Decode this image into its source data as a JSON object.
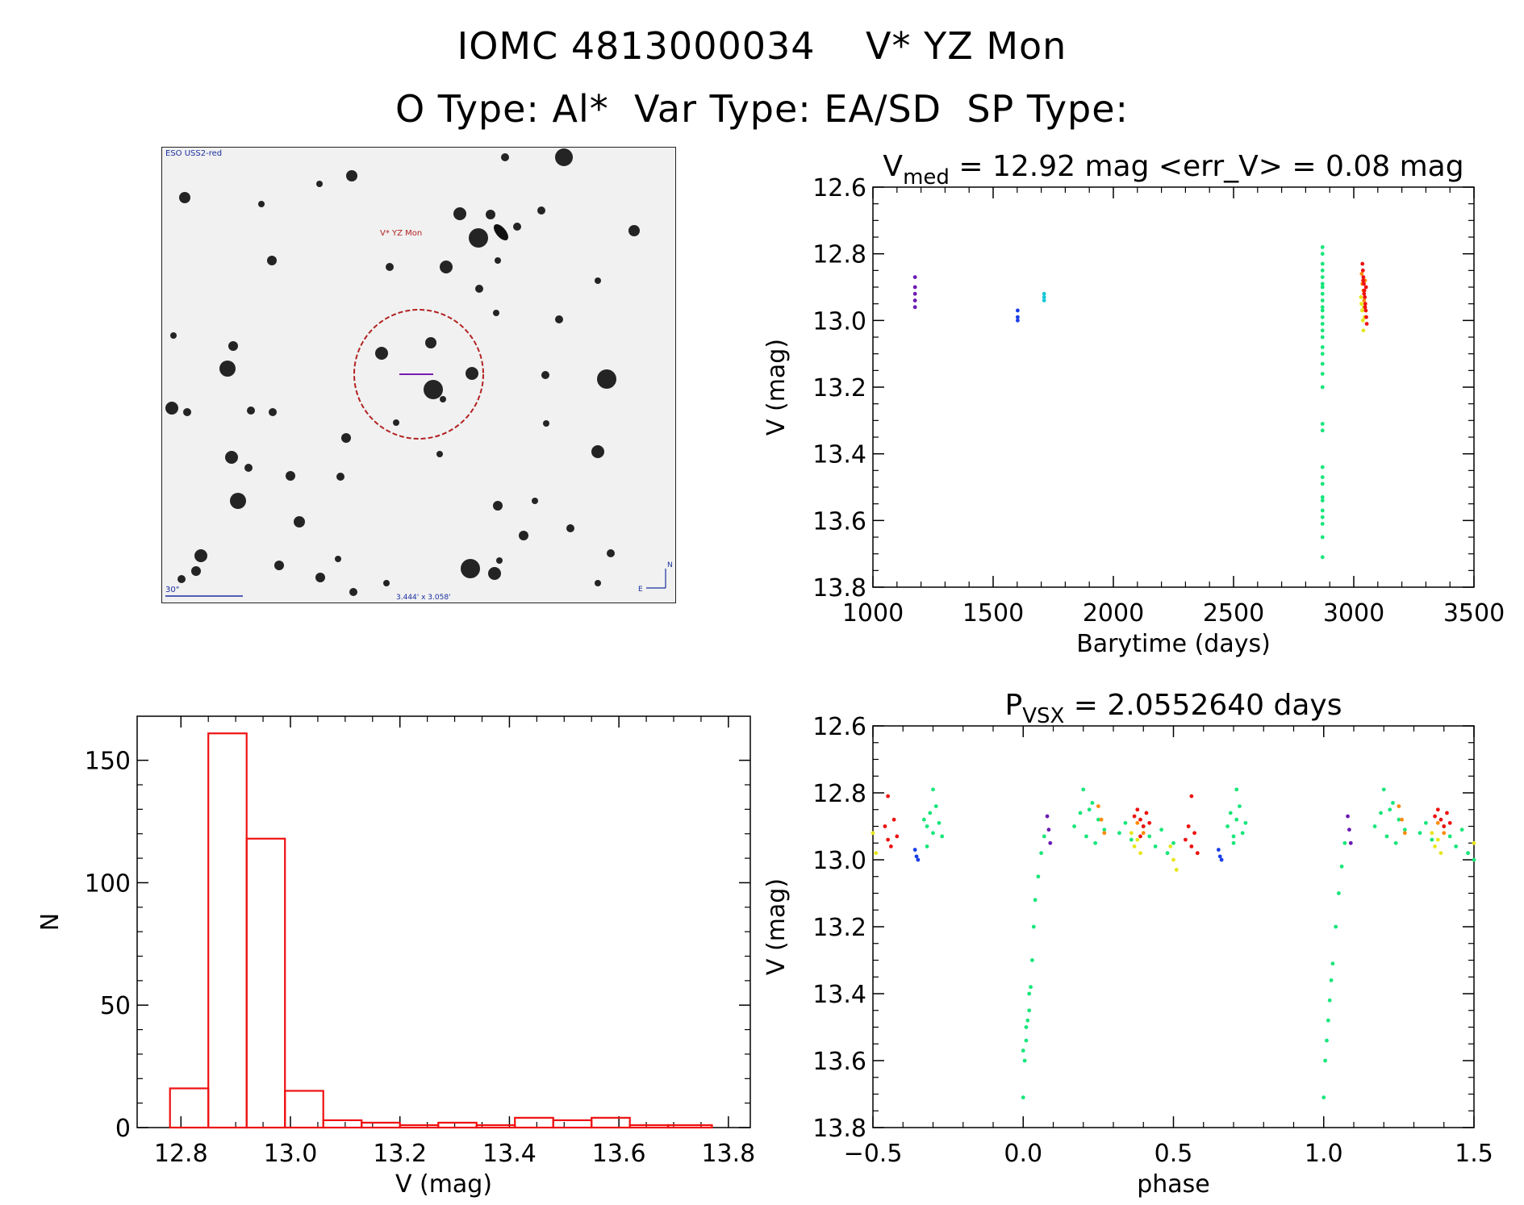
{
  "header": {
    "line1": "IOMC 4813000034    V* YZ Mon",
    "line2": "O Type: Al*  Var Type: EA/SD  SP Type:"
  },
  "finder": {
    "survey_label": "ESO USS2-red",
    "target_label": "V* YZ Mon",
    "scale_label": "30\"",
    "fov_label": "3.444' x 3.058'",
    "north_label": "N",
    "east_label": "E",
    "circle_color": "#b22222"
  },
  "colors": {
    "purple": "#6a1ab2",
    "blue": "#1a3ee6",
    "cyan": "#18c8d8",
    "green": "#16e67a",
    "yellow": "#e6e61a",
    "orange": "#ff8a00",
    "red": "#ee1111",
    "hist": "#ee1111"
  },
  "chart_data": [
    {
      "type": "scatter",
      "title_main": "V",
      "title_sub": "med",
      "title_rest": " = 12.92 mag <err_V> = 0.08 mag",
      "xlabel": "Barytime (days)",
      "ylabel": "V (mag)",
      "xlim": [
        1000,
        3500
      ],
      "ylim": [
        12.6,
        13.8
      ],
      "x_ticks": [
        "1000",
        "1500",
        "2000",
        "2500",
        "3000",
        "3500"
      ],
      "y_ticks": [
        "12.6",
        "12.8",
        "13.0",
        "13.2",
        "13.4",
        "13.6",
        "13.8"
      ],
      "y_inverted": true,
      "series": [
        {
          "name": "purple",
          "x": [
            1175,
            1175,
            1175,
            1175,
            1175
          ],
          "y": [
            12.87,
            12.9,
            12.92,
            12.94,
            12.96
          ]
        },
        {
          "name": "blue",
          "x": [
            1602,
            1602,
            1602
          ],
          "y": [
            12.97,
            12.99,
            13.0
          ]
        },
        {
          "name": "cyan",
          "x": [
            1712,
            1712,
            1712
          ],
          "y": [
            12.92,
            12.93,
            12.94
          ]
        },
        {
          "name": "green",
          "x": [
            2870,
            2870,
            2870,
            2870,
            2870,
            2870,
            2870,
            2870,
            2870,
            2870,
            2870,
            2870,
            2870,
            2870,
            2870,
            2870,
            2870,
            2870,
            2870,
            2870,
            2870,
            2870,
            2870,
            2870,
            2870,
            2870,
            2870,
            2870,
            2870,
            2870,
            2870,
            2870
          ],
          "y": [
            12.78,
            12.8,
            12.83,
            12.85,
            12.87,
            12.89,
            12.9,
            12.92,
            12.94,
            12.96,
            12.97,
            12.99,
            13.01,
            13.03,
            13.05,
            13.08,
            13.1,
            13.13,
            13.16,
            13.2,
            13.31,
            13.33,
            13.44,
            13.47,
            13.49,
            13.53,
            13.54,
            13.57,
            13.59,
            13.61,
            13.65,
            13.71
          ]
        },
        {
          "name": "yellow",
          "x": [
            3030,
            3032,
            3035,
            3038,
            3040,
            3042,
            3045
          ],
          "y": [
            12.93,
            12.95,
            12.97,
            13.0,
            13.03,
            12.96,
            12.99
          ]
        },
        {
          "name": "orange",
          "x": [
            3033,
            3036,
            3040,
            3043,
            3047
          ],
          "y": [
            12.86,
            12.89,
            12.91,
            12.94,
            12.88
          ]
        },
        {
          "name": "red",
          "x": [
            3036,
            3038,
            3040,
            3042,
            3044,
            3046,
            3048,
            3050,
            3052,
            3054,
            3039,
            3043,
            3047,
            3051
          ],
          "y": [
            12.83,
            12.85,
            12.87,
            12.89,
            12.91,
            12.93,
            12.95,
            12.97,
            12.99,
            13.01,
            12.88,
            12.92,
            12.96,
            12.9
          ]
        }
      ]
    },
    {
      "type": "bar",
      "title": "",
      "xlabel": "V (mag)",
      "ylabel": "N",
      "xlim": [
        12.72,
        13.84
      ],
      "ylim": [
        0,
        168
      ],
      "x_ticks": [
        "12.8",
        "13.0",
        "13.2",
        "13.4",
        "13.6",
        "13.8"
      ],
      "y_ticks": [
        "0",
        "50",
        "100",
        "150"
      ],
      "bin_edges": [
        12.78,
        12.85,
        12.92,
        12.99,
        13.06,
        13.13,
        13.2,
        13.27,
        13.34,
        13.41,
        13.48,
        13.55,
        13.62,
        13.69,
        13.77
      ],
      "values": [
        16,
        161,
        118,
        15,
        3,
        2,
        1,
        2,
        1,
        4,
        3,
        4,
        1,
        1
      ]
    },
    {
      "type": "scatter",
      "title_main": "P",
      "title_sub": "VSX",
      "title_rest": " = 2.0552640 days",
      "xlabel": "phase",
      "ylabel": "V (mag)",
      "xlim": [
        -0.5,
        1.5
      ],
      "ylim": [
        12.6,
        13.8
      ],
      "x_ticks": [
        "−0.5",
        "0.0",
        "0.5",
        "1.0",
        "1.5"
      ],
      "y_ticks": [
        "12.6",
        "12.8",
        "13.0",
        "13.2",
        "13.4",
        "13.6",
        "13.8"
      ],
      "y_inverted": true,
      "series": [
        {
          "name": "green",
          "x": [
            -0.33,
            -0.32,
            -0.31,
            -0.3,
            -0.29,
            -0.28,
            -0.27,
            -0.3,
            -0.32,
            0.0,
            0.005,
            0.01,
            0.015,
            0.02,
            0.025,
            0.03,
            0.035,
            0.04,
            0.05,
            0.06,
            0.07,
            0.0,
            0.01,
            0.02,
            0.17,
            0.19,
            0.21,
            0.23,
            0.25,
            0.27,
            0.2,
            0.22,
            0.24,
            0.32,
            0.34,
            0.36,
            0.4,
            0.42,
            0.44,
            0.46,
            0.48,
            0.5,
            0.68,
            0.69,
            0.7,
            0.71,
            0.72,
            0.73,
            0.74,
            0.71,
            0.7,
            1.0,
            1.005,
            1.01,
            1.015,
            1.02,
            1.025,
            1.03,
            1.04,
            1.05,
            1.06,
            1.07,
            1.17,
            1.19,
            1.21,
            1.23,
            1.25,
            1.27,
            1.2,
            1.22,
            1.24,
            1.32,
            1.34,
            1.36,
            1.4,
            1.42,
            1.44,
            1.46,
            1.48,
            1.5
          ],
          "y": [
            12.88,
            12.9,
            12.86,
            12.92,
            12.84,
            12.89,
            12.93,
            12.79,
            12.96,
            13.71,
            13.6,
            13.54,
            13.48,
            13.45,
            13.38,
            13.3,
            13.2,
            13.12,
            13.05,
            12.98,
            12.93,
            13.57,
            13.5,
            13.4,
            12.9,
            12.86,
            12.93,
            12.83,
            12.88,
            12.91,
            12.79,
            12.85,
            12.95,
            12.92,
            12.89,
            12.94,
            12.9,
            12.93,
            12.96,
            12.91,
            12.98,
            12.95,
            12.9,
            12.86,
            12.93,
            12.88,
            12.84,
            12.92,
            12.89,
            12.79,
            12.95,
            13.71,
            13.6,
            13.54,
            13.48,
            13.42,
            13.36,
            13.31,
            13.2,
            13.1,
            13.02,
            12.95,
            12.9,
            12.86,
            12.93,
            12.83,
            12.88,
            12.91,
            12.79,
            12.85,
            12.95,
            12.92,
            12.89,
            12.94,
            12.9,
            12.93,
            12.96,
            12.91,
            12.98,
            13.0
          ]
        },
        {
          "name": "yellow",
          "x": [
            -0.5,
            -0.49,
            0.36,
            0.37,
            0.38,
            0.39,
            0.49,
            0.5,
            0.51,
            1.36,
            1.37,
            1.38,
            1.39,
            1.5
          ],
          "y": [
            12.92,
            12.98,
            12.92,
            12.96,
            12.94,
            12.98,
            12.96,
            13.0,
            13.03,
            12.92,
            12.96,
            12.94,
            12.98,
            12.95
          ]
        },
        {
          "name": "orange",
          "x": [
            0.25,
            0.26,
            0.27,
            0.38,
            0.4,
            1.25,
            1.26,
            1.27,
            1.38,
            1.4
          ],
          "y": [
            12.84,
            12.88,
            12.92,
            12.89,
            12.92,
            12.84,
            12.88,
            12.92,
            12.89,
            12.92
          ]
        },
        {
          "name": "red",
          "x": [
            -0.46,
            -0.45,
            -0.44,
            -0.43,
            -0.42,
            -0.45,
            0.37,
            0.38,
            0.39,
            0.4,
            0.41,
            0.42,
            0.39,
            0.54,
            0.55,
            0.56,
            0.57,
            0.58,
            0.56,
            1.37,
            1.38,
            1.39,
            1.4,
            1.41,
            1.42
          ],
          "y": [
            12.9,
            12.94,
            12.96,
            12.88,
            12.93,
            12.81,
            12.87,
            12.85,
            12.88,
            12.9,
            12.86,
            12.89,
            12.93,
            12.94,
            12.9,
            12.96,
            12.92,
            12.98,
            12.81,
            12.87,
            12.85,
            12.88,
            12.9,
            12.86,
            12.89
          ]
        },
        {
          "name": "purple",
          "x": [
            0.08,
            0.085,
            0.09,
            1.08,
            1.085,
            1.09
          ],
          "y": [
            12.87,
            12.91,
            12.95,
            12.87,
            12.91,
            12.95
          ]
        },
        {
          "name": "blue",
          "x": [
            -0.36,
            -0.355,
            -0.35,
            0.65,
            0.655,
            0.66
          ],
          "y": [
            12.97,
            12.99,
            13.0,
            12.97,
            12.99,
            13.0
          ]
        }
      ]
    }
  ]
}
